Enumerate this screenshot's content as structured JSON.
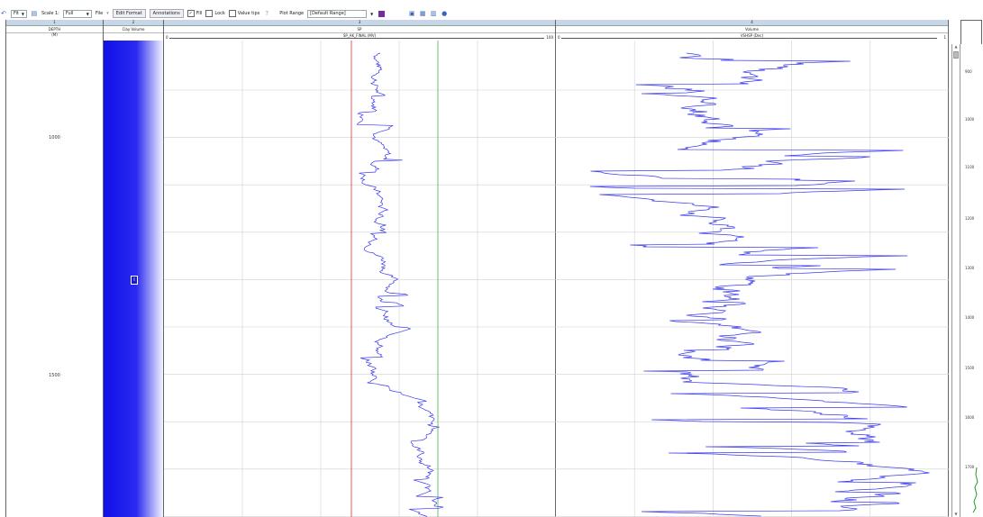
{
  "toolbar": {
    "undo_icon": "undo-icon",
    "fit_label": "Fit",
    "print_icon": "print-icon",
    "scale_label": "Scale 1:",
    "scale_value": "Full",
    "file_label": "File",
    "edit_format_label": "Edit Format",
    "annotations_label": "Annotations",
    "fill_label": "Fill",
    "fill_checked": true,
    "lock_label": "Lock",
    "lock_checked": false,
    "value_tips_label": "Value tips",
    "value_tips_checked": false,
    "plot_range_label": "Plot Range",
    "plot_range_value": "[Default Range]",
    "swatch_color": "#7030a0"
  },
  "tracks": [
    {
      "number": "1",
      "name": "DEPTH",
      "unit": "(M)"
    },
    {
      "number": "2",
      "name": "Clay Volume"
    },
    {
      "number": "3",
      "name": "SP",
      "curve": "SP_AK_FINAL (MV)",
      "scale_min": "0",
      "scale_max": "100"
    },
    {
      "number": "4",
      "name": "Volume",
      "curve": "VSHSP (Dec)",
      "scale_min": "0",
      "scale_max": "1"
    }
  ],
  "clay_marker": "I",
  "depth_labels": [
    "1000",
    "1500"
  ],
  "right_axis_labels": [
    "900",
    "1000",
    "1100",
    "1200",
    "1300",
    "1400",
    "1500",
    "1600",
    "1700"
  ],
  "colors": {
    "curve": "#3a3af0",
    "red_cutoff": "#e03030",
    "green_cutoff": "#50b050",
    "grid": "#d0d0d0",
    "clay_fill": "#1010e8"
  }
}
